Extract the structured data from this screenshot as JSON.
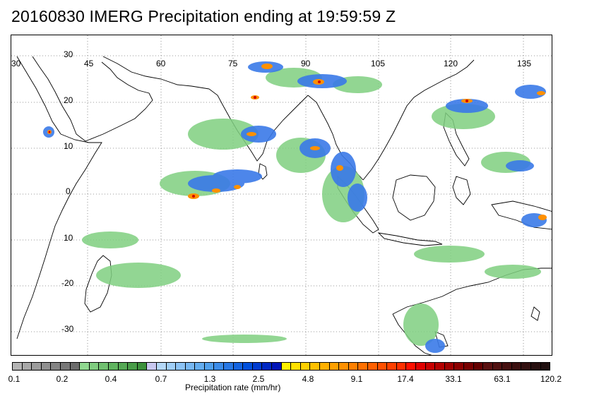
{
  "title": "20160830 IMERG Precipitation ending at 19:59:59 Z",
  "map": {
    "lon_labels": [
      "30",
      "45",
      "60",
      "75",
      "90",
      "105",
      "120",
      "135"
    ],
    "lat_labels": [
      "30",
      "20",
      "10",
      "0",
      "10",
      "-20",
      "-30"
    ],
    "grid": "dotted"
  },
  "colorbar": {
    "label": "Precipitation rate (mm/hr)",
    "ticks": [
      "0.1",
      "0.2",
      "0.4",
      "0.7",
      "1.3",
      "2.5",
      "4.8",
      "9.1",
      "17.4",
      "33.1",
      "63.1",
      "120.2"
    ],
    "colors": [
      "#b4b4b4",
      "#a8a8a8",
      "#9c9c9c",
      "#909090",
      "#848484",
      "#787878",
      "#6c6c6c",
      "#90d890",
      "#80cc80",
      "#70c070",
      "#60b460",
      "#54a854",
      "#489c48",
      "#3c903c",
      "#c8c8f0",
      "#b4d8f8",
      "#a0cff8",
      "#8cc3f5",
      "#78b8f2",
      "#64adef",
      "#50a0ec",
      "#3c8ce8",
      "#2878e4",
      "#1464e0",
      "#0050dc",
      "#003cd0",
      "#0028c4",
      "#0014b8",
      "#fff000",
      "#ffe000",
      "#ffd000",
      "#ffc000",
      "#ffb000",
      "#ffa000",
      "#ff9000",
      "#ff8000",
      "#ff7000",
      "#ff6000",
      "#ff5000",
      "#ff4000",
      "#ff3000",
      "#ff1000",
      "#e00000",
      "#c80000",
      "#b40000",
      "#a00000",
      "#8c0000",
      "#780000",
      "#640000",
      "#5a1010",
      "#501010",
      "#461010",
      "#3c1010",
      "#321010",
      "#281010",
      "#201010"
    ]
  }
}
